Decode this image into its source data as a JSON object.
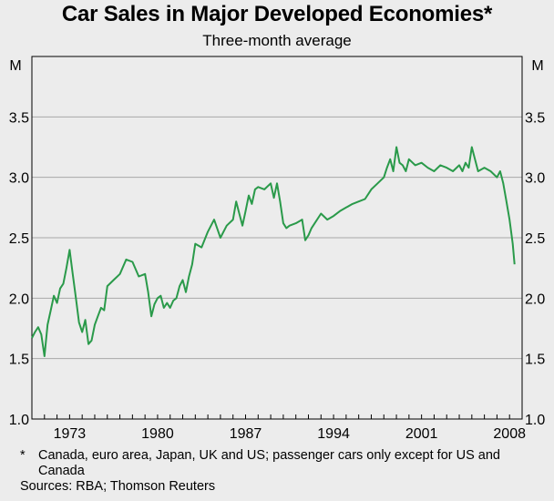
{
  "chart_data": {
    "type": "line",
    "title": "Car Sales in Major Developed Economies*",
    "subtitle": "Three-month average",
    "ylabel_left": "M",
    "ylabel_right": "M",
    "ylim": [
      1.0,
      4.0
    ],
    "yticks": [
      "1.0",
      "1.5",
      "2.0",
      "2.5",
      "3.0",
      "3.5"
    ],
    "xlim": [
      1970.0,
      2009.0
    ],
    "xticks": [
      {
        "label": "1973",
        "value": 1973
      },
      {
        "label": "1980",
        "value": 1980
      },
      {
        "label": "1987",
        "value": 1987
      },
      {
        "label": "1994",
        "value": 1994
      },
      {
        "label": "2001",
        "value": 2001
      },
      {
        "label": "2008",
        "value": 2008
      }
    ],
    "grid": true,
    "color": "#2a9a4a",
    "series": [
      {
        "name": "Car sales",
        "x": [
          1970.0,
          1970.25,
          1970.5,
          1970.75,
          1971.0,
          1971.25,
          1971.5,
          1971.75,
          1972.0,
          1972.25,
          1972.5,
          1972.75,
          1973.0,
          1973.25,
          1973.5,
          1973.75,
          1974.0,
          1974.25,
          1974.5,
          1974.75,
          1975.0,
          1975.25,
          1975.5,
          1975.75,
          1976.0,
          1976.5,
          1977.0,
          1977.5,
          1978.0,
          1978.5,
          1979.0,
          1979.25,
          1979.5,
          1979.75,
          1980.0,
          1980.25,
          1980.5,
          1980.75,
          1981.0,
          1981.25,
          1981.5,
          1981.75,
          1982.0,
          1982.25,
          1982.5,
          1982.75,
          1983.0,
          1983.5,
          1984.0,
          1984.5,
          1985.0,
          1985.5,
          1986.0,
          1986.25,
          1986.5,
          1986.75,
          1987.0,
          1987.25,
          1987.5,
          1987.75,
          1988.0,
          1988.5,
          1989.0,
          1989.25,
          1989.5,
          1989.75,
          1990.0,
          1990.25,
          1990.5,
          1991.0,
          1991.5,
          1991.75,
          1992.0,
          1992.25,
          1992.5,
          1993.0,
          1993.5,
          1994.0,
          1994.5,
          1995.0,
          1995.5,
          1996.0,
          1996.5,
          1997.0,
          1997.5,
          1998.0,
          1998.25,
          1998.5,
          1998.75,
          1999.0,
          1999.25,
          1999.5,
          1999.75,
          2000.0,
          2000.5,
          2001.0,
          2001.5,
          2002.0,
          2002.5,
          2003.0,
          2003.5,
          2004.0,
          2004.25,
          2004.5,
          2004.75,
          2005.0,
          2005.5,
          2006.0,
          2006.5,
          2007.0,
          2007.25,
          2007.5,
          2007.75,
          2008.0,
          2008.25,
          2008.4
        ],
        "values": [
          1.67,
          1.72,
          1.76,
          1.7,
          1.52,
          1.78,
          1.9,
          2.02,
          1.96,
          2.08,
          2.12,
          2.25,
          2.4,
          2.2,
          2.0,
          1.8,
          1.72,
          1.82,
          1.62,
          1.65,
          1.78,
          1.85,
          1.92,
          1.9,
          2.1,
          2.15,
          2.2,
          2.32,
          2.3,
          2.18,
          2.2,
          2.05,
          1.85,
          1.95,
          2.0,
          2.02,
          1.92,
          1.96,
          1.92,
          1.98,
          2.0,
          2.1,
          2.15,
          2.05,
          2.18,
          2.28,
          2.45,
          2.42,
          2.55,
          2.65,
          2.5,
          2.6,
          2.65,
          2.8,
          2.7,
          2.6,
          2.72,
          2.85,
          2.78,
          2.9,
          2.92,
          2.9,
          2.95,
          2.83,
          2.95,
          2.8,
          2.62,
          2.58,
          2.6,
          2.62,
          2.65,
          2.48,
          2.52,
          2.58,
          2.62,
          2.7,
          2.65,
          2.68,
          2.72,
          2.75,
          2.78,
          2.8,
          2.82,
          2.9,
          2.95,
          3.0,
          3.08,
          3.15,
          3.05,
          3.25,
          3.12,
          3.1,
          3.05,
          3.15,
          3.1,
          3.12,
          3.08,
          3.05,
          3.1,
          3.08,
          3.05,
          3.1,
          3.05,
          3.12,
          3.08,
          3.25,
          3.05,
          3.08,
          3.05,
          3.0,
          3.05,
          2.95,
          2.8,
          2.65,
          2.45,
          2.28
        ]
      }
    ],
    "footnote_mark": "*",
    "footnote_text": "Canada, euro area, Japan, UK and US; passenger cars only except for US and Canada",
    "sources": "Sources: RBA; Thomson Reuters"
  }
}
